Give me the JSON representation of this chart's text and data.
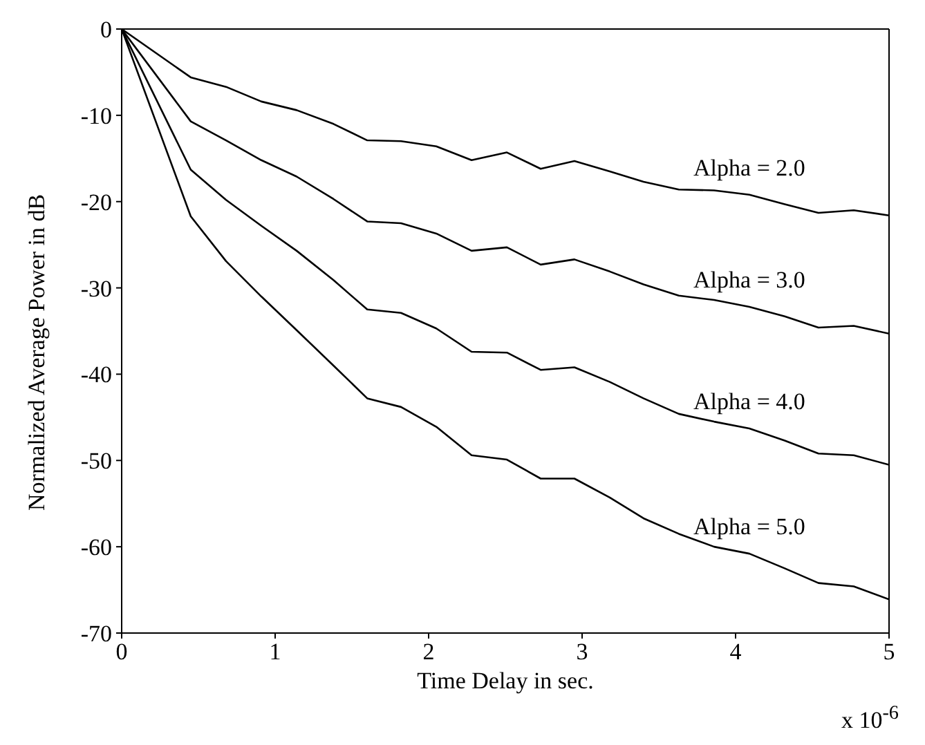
{
  "chart_data": {
    "type": "line",
    "xlabel": "Time Delay in sec.",
    "ylabel": "Normalized Average Power in dB",
    "x": [
      0,
      0.45,
      0.68,
      0.91,
      1.14,
      1.38,
      1.6,
      1.82,
      2.05,
      2.28,
      2.51,
      2.73,
      2.95,
      3.18,
      3.4,
      3.63,
      3.86,
      4.09,
      4.32,
      4.54,
      4.77,
      5
    ],
    "series": [
      {
        "name": "Alpha = 2.0",
        "color": "#000000",
        "values": [
          0,
          -5.6,
          -6.7,
          -8.4,
          -9.4,
          -11.0,
          -12.9,
          -13.0,
          -13.6,
          -15.2,
          -14.3,
          -16.2,
          -15.3,
          -16.5,
          -17.7,
          -18.6,
          -18.7,
          -19.2,
          -20.3,
          -21.3,
          -21.0,
          -21.6
        ]
      },
      {
        "name": "Alpha = 3.0",
        "color": "#000000",
        "values": [
          0,
          -10.7,
          -12.9,
          -15.2,
          -17.1,
          -19.7,
          -22.3,
          -22.5,
          -23.7,
          -25.7,
          -25.3,
          -27.3,
          -26.7,
          -28.1,
          -29.6,
          -30.9,
          -31.4,
          -32.2,
          -33.3,
          -34.6,
          -34.4,
          -35.3
        ]
      },
      {
        "name": "Alpha = 4.0",
        "color": "#000000",
        "values": [
          0,
          -16.3,
          -19.8,
          -22.8,
          -25.7,
          -29.1,
          -32.5,
          -32.9,
          -34.7,
          -37.4,
          -37.5,
          -39.5,
          -39.2,
          -40.9,
          -42.8,
          -44.6,
          -45.5,
          -46.3,
          -47.7,
          -49.2,
          -49.4,
          -50.5
        ]
      },
      {
        "name": "Alpha = 5.0",
        "color": "#000000",
        "values": [
          0,
          -21.7,
          -26.9,
          -31.0,
          -34.9,
          -39.0,
          -42.8,
          -43.8,
          -46.1,
          -49.4,
          -49.9,
          -52.1,
          -52.1,
          -54.3,
          -56.7,
          -58.5,
          -60.0,
          -60.8,
          -62.5,
          -64.2,
          -64.6,
          -66.1
        ]
      }
    ],
    "xlim": [
      0,
      5
    ],
    "xticks": [
      0,
      1,
      2,
      3,
      4,
      5
    ],
    "ylim": [
      -70,
      0
    ],
    "yticks": [
      -70,
      -60,
      -50,
      -40,
      -30,
      -20,
      -10,
      0
    ],
    "annotations": [
      "x 10$^{-6}$"
    ],
    "grid": false,
    "legend": false,
    "marker": "none",
    "line_style": "solid"
  }
}
